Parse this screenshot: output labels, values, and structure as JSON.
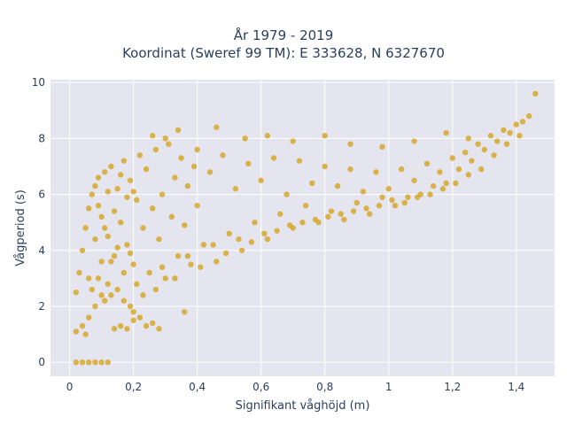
{
  "chart_data": {
    "type": "scatter",
    "title_lines": [
      "År 1979 - 2019",
      "Koordinat (Sweref 99 TM): E 333628, N 6327670"
    ],
    "xlabel": "Signifikant våghöjd (m)",
    "ylabel": "Vågperiod (s)",
    "xlim": [
      -0.06,
      1.52
    ],
    "ylim": [
      -0.5,
      10.1
    ],
    "xticks": [
      0,
      0.2,
      0.4,
      0.6,
      0.8,
      1,
      1.2,
      1.4
    ],
    "xtick_labels": [
      "0",
      "0,2",
      "0,4",
      "0,6",
      "0,8",
      "1",
      "1,2",
      "1,4"
    ],
    "yticks": [
      0,
      2,
      4,
      6,
      8,
      10
    ],
    "ytick_labels": [
      "0",
      "2",
      "4",
      "6",
      "8",
      "10"
    ],
    "grid": true,
    "marker_color": "#D4A41F",
    "plot_background": "#E5E5F0",
    "points": [
      [
        0.02,
        0
      ],
      [
        0.04,
        0
      ],
      [
        0.06,
        0
      ],
      [
        0.08,
        0
      ],
      [
        0.1,
        0
      ],
      [
        0.12,
        0
      ],
      [
        0.02,
        1.1
      ],
      [
        0.04,
        1.3
      ],
      [
        0.06,
        1.6
      ],
      [
        0.08,
        2.0
      ],
      [
        0.1,
        2.4
      ],
      [
        0.12,
        2.8
      ],
      [
        0.14,
        1.2
      ],
      [
        0.16,
        1.3
      ],
      [
        0.18,
        1.2
      ],
      [
        0.2,
        1.5
      ],
      [
        0.22,
        1.6
      ],
      [
        0.24,
        1.3
      ],
      [
        0.26,
        1.4
      ],
      [
        0.28,
        1.2
      ],
      [
        0.02,
        2.5
      ],
      [
        0.03,
        3.2
      ],
      [
        0.04,
        4.0
      ],
      [
        0.05,
        4.8
      ],
      [
        0.06,
        5.5
      ],
      [
        0.07,
        6.0
      ],
      [
        0.08,
        6.3
      ],
      [
        0.09,
        6.6
      ],
      [
        0.1,
        5.2
      ],
      [
        0.11,
        6.8
      ],
      [
        0.12,
        4.5
      ],
      [
        0.13,
        7.0
      ],
      [
        0.14,
        3.8
      ],
      [
        0.15,
        6.2
      ],
      [
        0.16,
        5.0
      ],
      [
        0.17,
        7.2
      ],
      [
        0.18,
        4.2
      ],
      [
        0.19,
        6.5
      ],
      [
        0.2,
        3.5
      ],
      [
        0.21,
        5.8
      ],
      [
        0.22,
        7.4
      ],
      [
        0.23,
        4.8
      ],
      [
        0.24,
        6.9
      ],
      [
        0.25,
        3.2
      ],
      [
        0.26,
        5.5
      ],
      [
        0.27,
        7.6
      ],
      [
        0.28,
        4.4
      ],
      [
        0.29,
        6.0
      ],
      [
        0.3,
        3.0
      ],
      [
        0.31,
        7.8
      ],
      [
        0.32,
        5.2
      ],
      [
        0.33,
        6.6
      ],
      [
        0.34,
        3.8
      ],
      [
        0.35,
        7.3
      ],
      [
        0.36,
        4.9
      ],
      [
        0.37,
        6.3
      ],
      [
        0.38,
        3.5
      ],
      [
        0.39,
        7.0
      ],
      [
        0.4,
        5.6
      ],
      [
        0.42,
        4.2
      ],
      [
        0.44,
        6.8
      ],
      [
        0.46,
        3.6
      ],
      [
        0.48,
        7.4
      ],
      [
        0.5,
        4.6
      ],
      [
        0.52,
        6.2
      ],
      [
        0.54,
        4.0
      ],
      [
        0.56,
        7.1
      ],
      [
        0.58,
        5.0
      ],
      [
        0.6,
        6.5
      ],
      [
        0.62,
        4.4
      ],
      [
        0.64,
        7.3
      ],
      [
        0.66,
        5.3
      ],
      [
        0.68,
        6.0
      ],
      [
        0.7,
        4.8
      ],
      [
        0.72,
        7.2
      ],
      [
        0.74,
        5.6
      ],
      [
        0.76,
        6.4
      ],
      [
        0.78,
        5.0
      ],
      [
        0.8,
        7.0
      ],
      [
        0.82,
        5.4
      ],
      [
        0.84,
        6.3
      ],
      [
        0.86,
        5.1
      ],
      [
        0.88,
        6.9
      ],
      [
        0.9,
        5.7
      ],
      [
        0.92,
        6.1
      ],
      [
        0.94,
        5.3
      ],
      [
        0.96,
        6.8
      ],
      [
        0.98,
        5.9
      ],
      [
        1.0,
        6.2
      ],
      [
        1.02,
        5.6
      ],
      [
        1.04,
        6.9
      ],
      [
        1.06,
        5.9
      ],
      [
        1.08,
        6.5
      ],
      [
        1.1,
        6.0
      ],
      [
        1.12,
        7.1
      ],
      [
        1.14,
        6.3
      ],
      [
        1.16,
        6.8
      ],
      [
        1.18,
        6.4
      ],
      [
        1.2,
        7.3
      ],
      [
        1.22,
        6.9
      ],
      [
        1.24,
        7.5
      ],
      [
        1.26,
        7.2
      ],
      [
        1.28,
        7.8
      ],
      [
        1.3,
        7.6
      ],
      [
        1.32,
        8.1
      ],
      [
        1.34,
        7.9
      ],
      [
        1.36,
        8.3
      ],
      [
        1.38,
        8.2
      ],
      [
        1.4,
        8.5
      ],
      [
        1.42,
        8.6
      ],
      [
        1.44,
        8.8
      ],
      [
        1.46,
        9.6
      ],
      [
        0.26,
        8.1
      ],
      [
        0.34,
        8.3
      ],
      [
        0.46,
        8.4
      ],
      [
        0.55,
        8.0
      ],
      [
        0.62,
        8.1
      ],
      [
        0.7,
        7.9
      ],
      [
        0.8,
        8.1
      ],
      [
        0.88,
        7.8
      ],
      [
        0.98,
        7.7
      ],
      [
        1.08,
        7.9
      ],
      [
        1.18,
        8.2
      ],
      [
        1.25,
        8.0
      ],
      [
        0.3,
        8.0
      ],
      [
        0.4,
        7.6
      ],
      [
        0.09,
        3.0
      ],
      [
        0.11,
        2.2
      ],
      [
        0.13,
        3.6
      ],
      [
        0.15,
        2.6
      ],
      [
        0.17,
        3.2
      ],
      [
        0.19,
        2.0
      ],
      [
        0.21,
        2.8
      ],
      [
        0.23,
        2.4
      ],
      [
        0.27,
        2.6
      ],
      [
        0.29,
        3.4
      ],
      [
        0.33,
        3.0
      ],
      [
        0.37,
        3.8
      ],
      [
        0.41,
        3.4
      ],
      [
        0.45,
        4.2
      ],
      [
        0.49,
        3.9
      ],
      [
        0.53,
        4.4
      ],
      [
        0.57,
        4.3
      ],
      [
        0.61,
        4.6
      ],
      [
        0.65,
        4.7
      ],
      [
        0.69,
        4.9
      ],
      [
        0.73,
        5.0
      ],
      [
        0.77,
        5.1
      ],
      [
        0.81,
        5.2
      ],
      [
        0.85,
        5.3
      ],
      [
        0.89,
        5.4
      ],
      [
        0.93,
        5.5
      ],
      [
        0.97,
        5.6
      ],
      [
        1.01,
        5.8
      ],
      [
        1.05,
        5.7
      ],
      [
        1.09,
        5.9
      ],
      [
        1.13,
        6.0
      ],
      [
        1.17,
        6.2
      ],
      [
        1.21,
        6.4
      ],
      [
        1.25,
        6.7
      ],
      [
        1.29,
        6.9
      ],
      [
        1.33,
        7.4
      ],
      [
        1.37,
        7.8
      ],
      [
        1.41,
        8.1
      ],
      [
        0.36,
        1.8
      ],
      [
        0.2,
        1.8
      ],
      [
        0.05,
        1.0
      ],
      [
        0.06,
        3.0
      ],
      [
        0.07,
        2.6
      ],
      [
        0.08,
        4.4
      ],
      [
        0.09,
        5.6
      ],
      [
        0.1,
        3.6
      ],
      [
        0.11,
        4.8
      ],
      [
        0.12,
        6.1
      ],
      [
        0.13,
        2.4
      ],
      [
        0.14,
        5.4
      ],
      [
        0.15,
        4.1
      ],
      [
        0.16,
        6.7
      ],
      [
        0.17,
        2.2
      ],
      [
        0.18,
        5.9
      ],
      [
        0.19,
        3.9
      ],
      [
        0.2,
        6.1
      ]
    ]
  }
}
